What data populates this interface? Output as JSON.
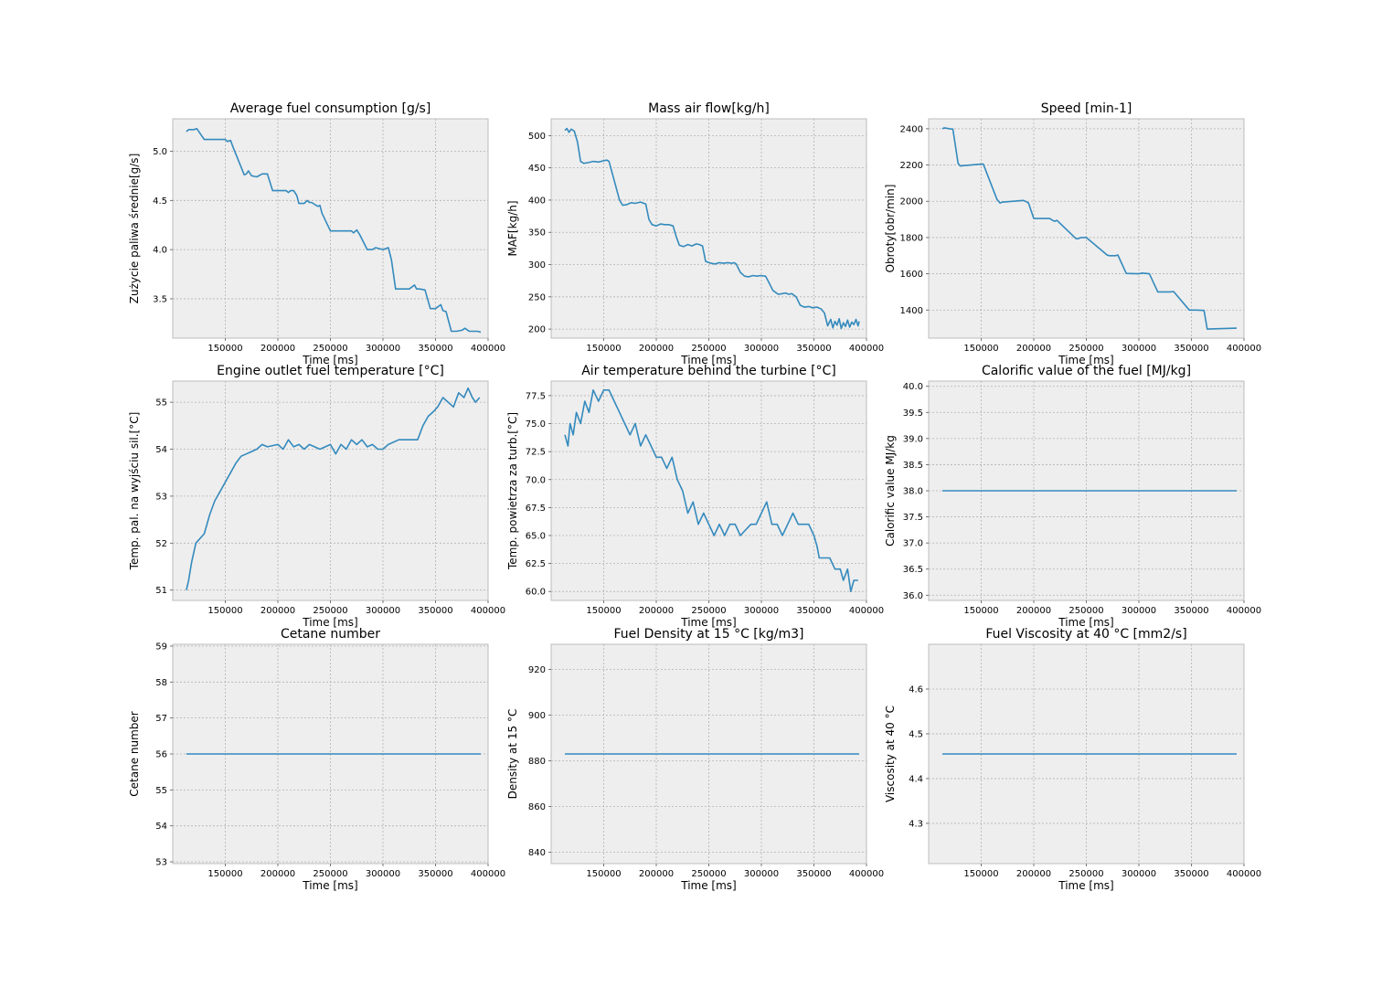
{
  "charts": {
    "chart_data": [
      {
        "type": "line",
        "title": "Average fuel consumption [g/s]",
        "xlabel": "Time [ms]",
        "ylabel": "Zużycie paliwa średnie[g/s]",
        "xlim": [
          100000,
          400000
        ],
        "ylim": [
          3.1,
          5.33
        ],
        "xticks": [
          150000,
          200000,
          250000,
          300000,
          350000,
          400000
        ],
        "yticks": [
          3.5,
          4.0,
          4.5,
          5.0
        ],
        "ytick_decimals": 1,
        "grid": true,
        "series": [
          {
            "x": [
              113000,
              115000,
              120000,
              123000,
              128000,
              130000,
              150000,
              152000,
              155000,
              157000,
              168000,
              170000,
              172000,
              175000,
              180000,
              185000,
              190000,
              195000,
              200000,
              208000,
              210000,
              212000,
              215000,
              218000,
              220000,
              225000,
              228000,
              230000,
              232000,
              238000,
              240000,
              242000,
              250000,
              270000,
              272000,
              275000,
              278000,
              285000,
              290000,
              293000,
              300000,
              305000,
              308000,
              312000,
              325000,
              330000,
              332000,
              335000,
              340000,
              345000,
              350000,
              355000,
              357000,
              360000,
              365000,
              370000,
              375000,
              378000,
              382000,
              390000,
              393000
            ],
            "y": [
              5.2,
              5.22,
              5.22,
              5.23,
              5.15,
              5.12,
              5.12,
              5.1,
              5.11,
              5.05,
              4.76,
              4.77,
              4.8,
              4.75,
              4.74,
              4.77,
              4.77,
              4.6,
              4.6,
              4.6,
              4.58,
              4.6,
              4.6,
              4.55,
              4.47,
              4.47,
              4.5,
              4.48,
              4.48,
              4.44,
              4.45,
              4.37,
              4.19,
              4.19,
              4.17,
              4.2,
              4.15,
              4.0,
              4.0,
              4.02,
              4.0,
              4.02,
              3.9,
              3.6,
              3.6,
              3.64,
              3.6,
              3.6,
              3.59,
              3.4,
              3.4,
              3.44,
              3.38,
              3.37,
              3.17,
              3.17,
              3.18,
              3.2,
              3.17,
              3.17,
              3.16
            ]
          }
        ]
      },
      {
        "type": "line",
        "title": "Mass air flow[kg/h]",
        "xlabel": "Time [ms]",
        "ylabel": "MAF[kg/h]",
        "xlim": [
          100000,
          400000
        ],
        "ylim": [
          186,
          526
        ],
        "xticks": [
          150000,
          200000,
          250000,
          300000,
          350000,
          400000
        ],
        "yticks": [
          200,
          250,
          300,
          350,
          400,
          450,
          500
        ],
        "ytick_decimals": 0,
        "grid": true,
        "series": [
          {
            "x": [
              113000,
              115000,
              117000,
              119000,
              122000,
              125000,
              128000,
              131000,
              135000,
              140000,
              145000,
              150000,
              153000,
              155000,
              165000,
              168000,
              172000,
              176000,
              180000,
              185000,
              190000,
              193000,
              196000,
              200000,
              204000,
              208000,
              212000,
              216000,
              219000,
              222000,
              226000,
              230000,
              234000,
              238000,
              241000,
              244000,
              247000,
              252000,
              256000,
              260000,
              264000,
              268000,
              272000,
              274000,
              276000,
              280000,
              284000,
              288000,
              292000,
              296000,
              299000,
              304000,
              307000,
              311000,
              316000,
              320000,
              323000,
              326000,
              329000,
              333000,
              337000,
              341000,
              345000,
              349000,
              353000,
              357000,
              360000,
              363000,
              366000,
              368000,
              370000,
              372000,
              374000,
              376000,
              378000,
              380000,
              382000,
              384000,
              386000,
              388000,
              390000,
              392000,
              393000
            ],
            "y": [
              508,
              511,
              505,
              510,
              507,
              490,
              460,
              457,
              458,
              460,
              459,
              461,
              462,
              460,
              400,
              392,
              393,
              396,
              395,
              397,
              394,
              370,
              362,
              360,
              363,
              362,
              362,
              360,
              343,
              330,
              328,
              331,
              329,
              332,
              331,
              329,
              305,
              302,
              301,
              303,
              302,
              303,
              302,
              303,
              301,
              288,
              282,
              281,
              283,
              282,
              283,
              282,
              273,
              260,
              254,
              255,
              256,
              254,
              255,
              250,
              237,
              234,
              235,
              233,
              234,
              231,
              225,
              205,
              215,
              202,
              212,
              206,
              216,
              201,
              210,
              204,
              214,
              203,
              211,
              207,
              215,
              205,
              212
            ]
          }
        ]
      },
      {
        "type": "line",
        "title": "Speed [min-1]",
        "xlabel": "Time [ms]",
        "ylabel": "Obroty[obr/min]",
        "xlim": [
          100000,
          400000
        ],
        "ylim": [
          1245,
          2455
        ],
        "xticks": [
          150000,
          200000,
          250000,
          300000,
          350000,
          400000
        ],
        "yticks": [
          1400,
          1600,
          1800,
          2000,
          2200,
          2400
        ],
        "ytick_decimals": 0,
        "grid": true,
        "series": [
          {
            "x": [
              113000,
              115000,
              120000,
              123000,
              128000,
              130000,
              150000,
              152000,
              165000,
              168000,
              170000,
              190000,
              192000,
              195000,
              200000,
              215000,
              218000,
              220000,
              222000,
              240000,
              242000,
              245000,
              250000,
              270000,
              272000,
              275000,
              278000,
              280000,
              288000,
              300000,
              303000,
              310000,
              318000,
              323000,
              330000,
              333000,
              348000,
              355000,
              362000,
              365000,
              393000
            ],
            "y": [
              2400,
              2405,
              2400,
              2398,
              2210,
              2195,
              2205,
              2205,
              2010,
              1990,
              1995,
              2005,
              2000,
              1990,
              1905,
              1905,
              1895,
              1890,
              1895,
              1795,
              1793,
              1800,
              1800,
              1703,
              1700,
              1700,
              1700,
              1704,
              1602,
              1600,
              1604,
              1600,
              1500,
              1500,
              1500,
              1502,
              1400,
              1400,
              1398,
              1295,
              1300
            ]
          }
        ]
      },
      {
        "type": "line",
        "title": "Engine outlet fuel temperature [°C]",
        "xlabel": "Time [ms]",
        "ylabel": "Temp. pal. na wyjściu sil.[°C]",
        "xlim": [
          100000,
          400000
        ],
        "ylim": [
          50.78,
          55.45
        ],
        "xticks": [
          150000,
          200000,
          250000,
          300000,
          350000,
          400000
        ],
        "yticks": [
          51,
          52,
          53,
          54,
          55
        ],
        "ytick_decimals": 0,
        "grid": true,
        "series": [
          {
            "x": [
              113000,
              115000,
              118000,
              122000,
              130000,
              135000,
              140000,
              145000,
              150000,
              155000,
              160000,
              165000,
              170000,
              175000,
              180000,
              185000,
              190000,
              200000,
              205000,
              210000,
              215000,
              220000,
              225000,
              230000,
              240000,
              250000,
              255000,
              260000,
              265000,
              270000,
              275000,
              280000,
              285000,
              290000,
              295000,
              300000,
              305000,
              315000,
              320000,
              333000,
              338000,
              343000,
              348000,
              352000,
              357000,
              362000,
              367000,
              372000,
              377000,
              381000,
              385000,
              388000,
              392000
            ],
            "y": [
              51.0,
              51.2,
              51.6,
              52.0,
              52.2,
              52.6,
              52.9,
              53.1,
              53.3,
              53.5,
              53.7,
              53.85,
              53.9,
              53.95,
              54.0,
              54.1,
              54.05,
              54.1,
              54.0,
              54.2,
              54.05,
              54.1,
              54.0,
              54.1,
              54.0,
              54.1,
              53.9,
              54.1,
              54.0,
              54.2,
              54.1,
              54.2,
              54.05,
              54.1,
              54.0,
              54.0,
              54.1,
              54.2,
              54.2,
              54.2,
              54.5,
              54.7,
              54.8,
              54.9,
              55.1,
              55.0,
              54.9,
              55.2,
              55.1,
              55.3,
              55.1,
              55.0,
              55.1
            ]
          }
        ]
      },
      {
        "type": "line",
        "title": "Air temperature behind the turbine [°C]",
        "xlabel": "Time [ms]",
        "ylabel": "Temp. powietrza za turb.[°C]",
        "xlim": [
          100000,
          400000
        ],
        "ylim": [
          59.2,
          78.8
        ],
        "xticks": [
          150000,
          200000,
          250000,
          300000,
          350000,
          400000
        ],
        "yticks": [
          60.0,
          62.5,
          65.0,
          67.5,
          70.0,
          72.5,
          75.0,
          77.5
        ],
        "ytick_decimals": 1,
        "grid": true,
        "series": [
          {
            "x": [
              113000,
              116000,
              118000,
              121000,
              124000,
              128000,
              132000,
              136000,
              140000,
              145000,
              150000,
              155000,
              160000,
              165000,
              170000,
              175000,
              180000,
              185000,
              190000,
              195000,
              200000,
              205000,
              210000,
              215000,
              220000,
              225000,
              230000,
              235000,
              240000,
              245000,
              250000,
              255000,
              260000,
              265000,
              270000,
              275000,
              280000,
              290000,
              295000,
              300000,
              305000,
              310000,
              315000,
              320000,
              325000,
              330000,
              335000,
              340000,
              345000,
              350000,
              353000,
              355000,
              360000,
              365000,
              370000,
              375000,
              378000,
              382000,
              385000,
              388000,
              390000,
              392000
            ],
            "y": [
              74,
              73,
              75,
              74,
              76,
              75,
              77,
              76,
              78,
              77,
              78,
              78,
              77,
              76,
              75,
              74,
              75,
              73,
              74,
              73,
              72,
              72,
              71,
              72,
              70,
              69,
              67,
              68,
              66,
              67,
              66,
              65,
              66,
              65,
              66,
              66,
              65,
              66,
              66,
              67,
              68,
              66,
              66,
              65,
              66,
              67,
              66,
              66,
              66,
              65,
              64,
              63,
              63,
              63,
              62,
              62,
              61,
              62,
              60,
              61,
              61,
              61
            ]
          }
        ]
      },
      {
        "type": "line",
        "title": "Calorific value of the fuel [MJ/kg]",
        "xlabel": "Time [ms]",
        "ylabel": "Calorific value MJ/kg",
        "xlim": [
          100000,
          400000
        ],
        "ylim": [
          35.9,
          40.1
        ],
        "xticks": [
          150000,
          200000,
          250000,
          300000,
          350000,
          400000
        ],
        "yticks": [
          36.0,
          36.5,
          37.0,
          37.5,
          38.0,
          38.5,
          39.0,
          39.5,
          40.0
        ],
        "ytick_decimals": 1,
        "grid": true,
        "series": [
          {
            "x": [
              113000,
              393000
            ],
            "y": [
              38.0,
              38.0
            ]
          }
        ]
      },
      {
        "type": "line",
        "title": "Cetane number",
        "xlabel": "Time [ms]",
        "ylabel": "Cetane number",
        "xlim": [
          100000,
          400000
        ],
        "ylim": [
          52.95,
          59.05
        ],
        "xticks": [
          150000,
          200000,
          250000,
          300000,
          350000,
          400000
        ],
        "yticks": [
          53,
          54,
          55,
          56,
          57,
          58,
          59
        ],
        "ytick_decimals": 0,
        "grid": true,
        "series": [
          {
            "x": [
              113000,
              393000
            ],
            "y": [
              56,
              56
            ]
          }
        ]
      },
      {
        "type": "line",
        "title": "Fuel Density at 15 °C [kg/m3]",
        "xlabel": "Time [ms]",
        "ylabel": "Density at 15 °C",
        "xlim": [
          100000,
          400000
        ],
        "ylim": [
          835,
          931
        ],
        "xticks": [
          150000,
          200000,
          250000,
          300000,
          350000,
          400000
        ],
        "yticks": [
          840,
          860,
          880,
          900,
          920
        ],
        "ytick_decimals": 0,
        "grid": true,
        "series": [
          {
            "x": [
              113000,
              393000
            ],
            "y": [
              883,
              883
            ]
          }
        ]
      },
      {
        "type": "line",
        "title": "Fuel Viscosity  at 40 °C [mm2/s]",
        "xlabel": "Time [ms]",
        "ylabel": "Viscosity at 40 °C",
        "xlim": [
          100000,
          400000
        ],
        "ylim": [
          4.21,
          4.7
        ],
        "xticks": [
          150000,
          200000,
          250000,
          300000,
          350000,
          400000
        ],
        "yticks": [
          4.3,
          4.4,
          4.5,
          4.6
        ],
        "ytick_decimals": 1,
        "grid": true,
        "series": [
          {
            "x": [
              113000,
              393000
            ],
            "y": [
              4.455,
              4.455
            ]
          }
        ]
      }
    ]
  },
  "colors": {
    "line": "#348abd",
    "axes_bg": "#eeeeee",
    "grid": "#b2b2b2",
    "spine": "#bcbcbc"
  }
}
